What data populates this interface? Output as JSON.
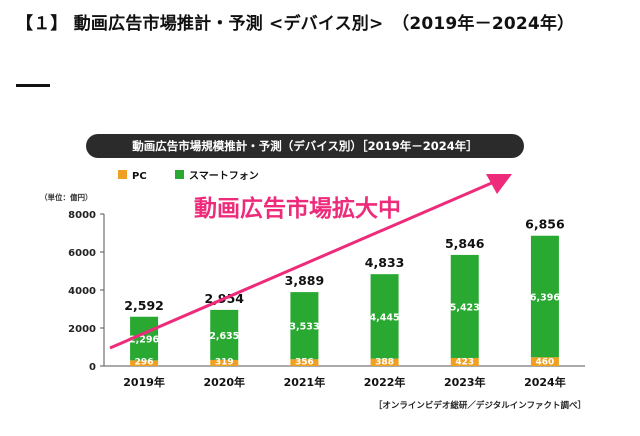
{
  "page": {
    "heading": "【１】 動画広告市場推計・予測 <デバイス別>　（2019年－2024年）",
    "banner": "動画広告市場規模推計・予測（デバイス別）［2019年－2024年］",
    "source": "［オンラインビデオ総研／デジタルインファクト調べ］"
  },
  "chart_data": {
    "type": "bar",
    "stacked": true,
    "categories": [
      "2019年",
      "2020年",
      "2021年",
      "2022年",
      "2023年",
      "2024年"
    ],
    "series": [
      {
        "name": "PC",
        "values": [
          296,
          319,
          356,
          388,
          423,
          460
        ],
        "labels": [
          "296",
          "319",
          "356",
          "388",
          "423",
          "460"
        ],
        "color": "#f0a020"
      },
      {
        "name": "スマートフォン",
        "values": [
          2296,
          2635,
          3533,
          4445,
          5423,
          6396
        ],
        "labels": [
          "2,296",
          "2,635",
          "3,533",
          "4,445",
          "5,423",
          "6,396"
        ],
        "color": "#29a832"
      }
    ],
    "totals": [
      2592,
      2954,
      3889,
      4833,
      5846,
      6856
    ],
    "total_labels": [
      "2,592",
      "2,954",
      "3,889",
      "4,833",
      "5,846",
      "6,856"
    ],
    "ylabel": "（単位：億円）",
    "ylim": [
      0,
      8000
    ],
    "yticks": [
      0,
      2000,
      4000,
      6000,
      8000
    ],
    "grid": false,
    "legend_position": "top-left",
    "annotation": {
      "text": "動画広告市場拡大中",
      "color": "#ee2b7a"
    }
  }
}
